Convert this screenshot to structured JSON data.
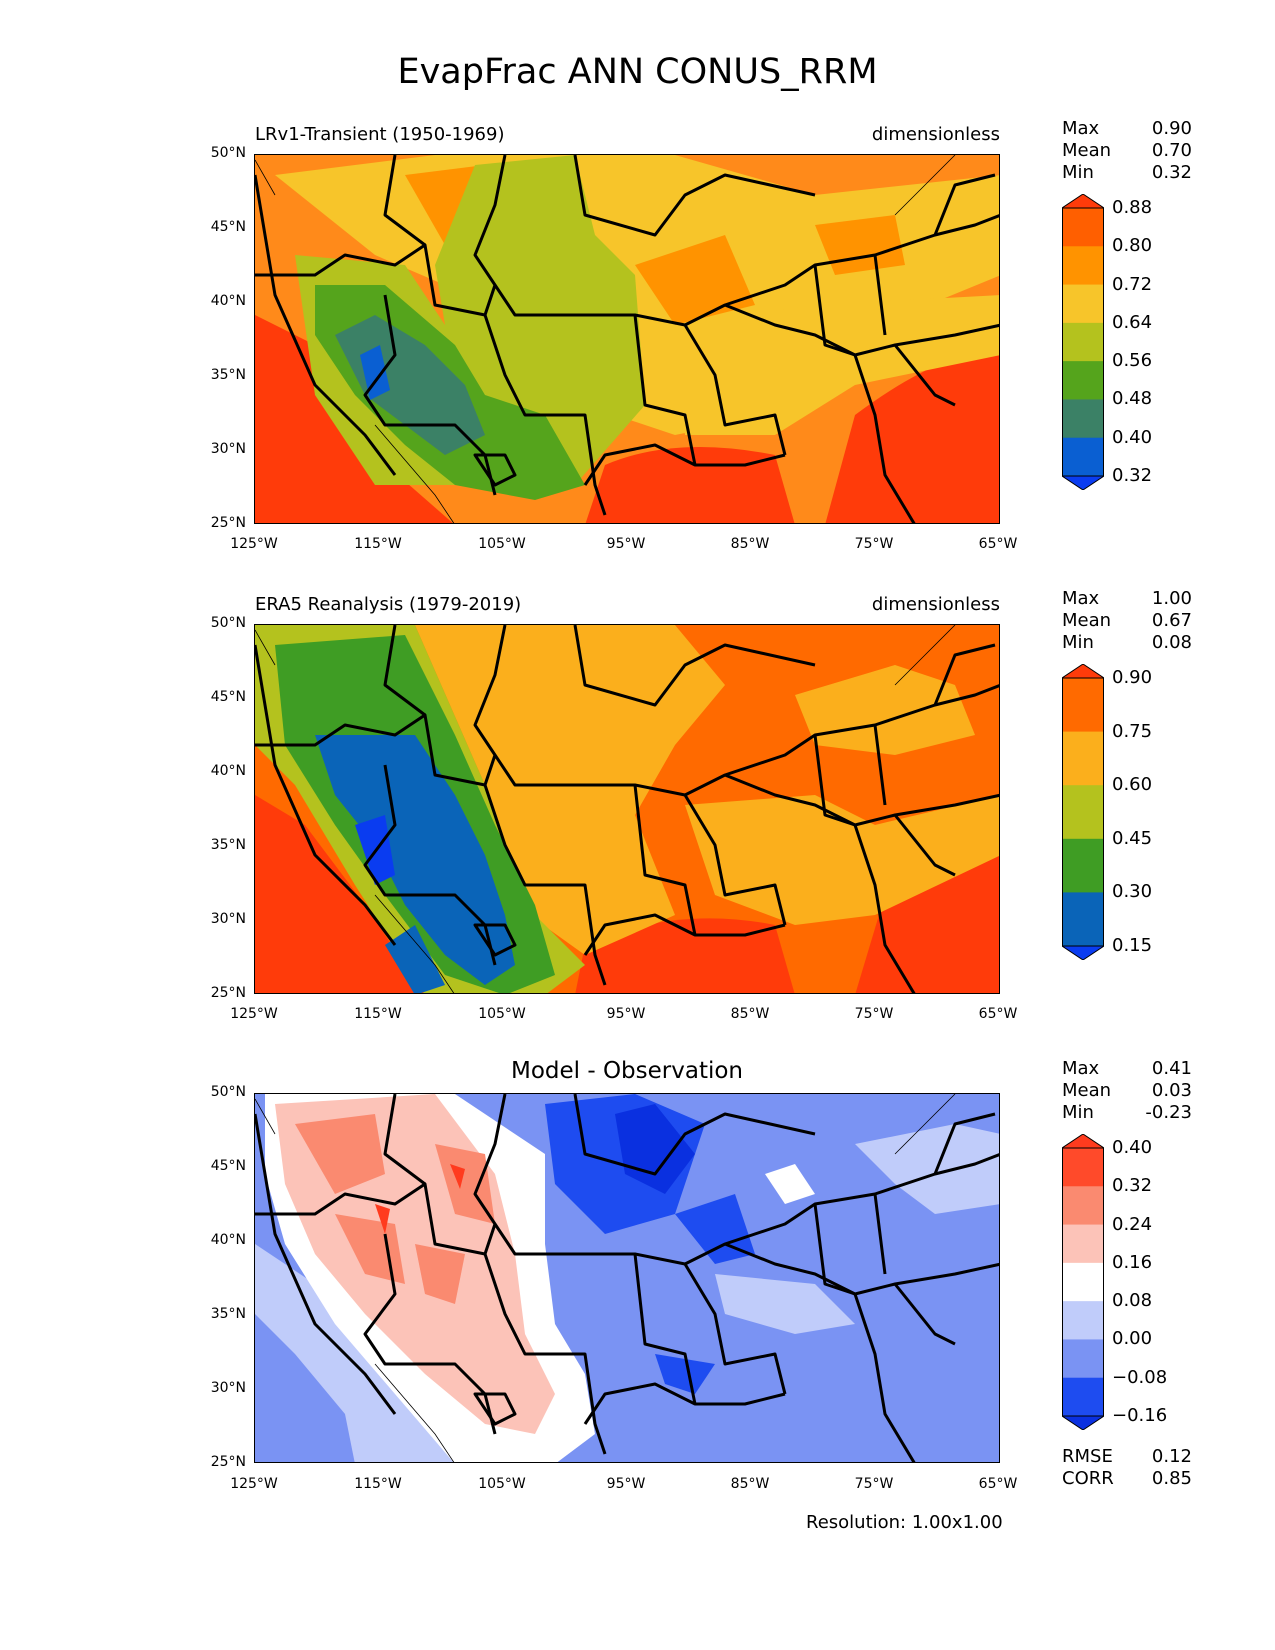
{
  "title": "EvapFrac ANN CONUS_RRM",
  "lat_ticks": [
    "50°N",
    "45°N",
    "40°N",
    "35°N",
    "30°N",
    "25°N"
  ],
  "lon_ticks": [
    "125°W",
    "115°W",
    "105°W",
    "95°W",
    "85°W",
    "75°W",
    "65°W"
  ],
  "panels": [
    {
      "title_left": "LRv1-Transient (1950-1969)",
      "title_right": "dimensionless",
      "stats": {
        "max_label": "Max",
        "max": "0.90",
        "mean_label": "Mean",
        "mean": "0.70",
        "min_label": "Min",
        "min": "0.32"
      },
      "colorbar": {
        "labels": [
          "0.88",
          "0.80",
          "0.72",
          "0.64",
          "0.56",
          "0.48",
          "0.40",
          "0.32"
        ],
        "colors": [
          "#ff3b0a",
          "#ff5f00",
          "#ff9300",
          "#f7c52a",
          "#b4c21e",
          "#55a41c",
          "#3b8166",
          "#0a5fd2",
          "#0a3cf0"
        ]
      }
    },
    {
      "title_left": "ERA5 Reanalysis (1979-2019)",
      "title_right": "dimensionless",
      "stats": {
        "max_label": "Max",
        "max": "1.00",
        "mean_label": "Mean",
        "mean": "0.67",
        "min_label": "Min",
        "min": "0.08"
      },
      "colorbar": {
        "labels": [
          "0.90",
          "0.75",
          "0.60",
          "0.45",
          "0.30",
          "0.15"
        ],
        "colors": [
          "#ff3b0a",
          "#ff6a00",
          "#fbaf1c",
          "#b4c21e",
          "#3f9d24",
          "#0a64b8",
          "#0a3cf0"
        ]
      }
    },
    {
      "title_center": "Model - Observation",
      "stats": {
        "max_label": "Max",
        "max": "0.41",
        "mean_label": "Mean",
        "mean": "0.03",
        "min_label": "Min",
        "min": "-0.23"
      },
      "colorbar": {
        "labels": [
          "0.40",
          "0.32",
          "0.24",
          "0.16",
          "0.08",
          "0.00",
          "−0.08",
          "−0.16"
        ],
        "colors": [
          "#ff3b1e",
          "#ff4a2a",
          "#fa8a70",
          "#fcc3b8",
          "#ffffff",
          "#c0ccfa",
          "#7a93f3",
          "#1e4cf0",
          "#0a30e0"
        ]
      },
      "metrics": {
        "rmse_label": "RMSE",
        "rmse": "0.12",
        "corr_label": "CORR",
        "corr": "0.85"
      }
    }
  ],
  "resolution": "Resolution: 1.00x1.00"
}
